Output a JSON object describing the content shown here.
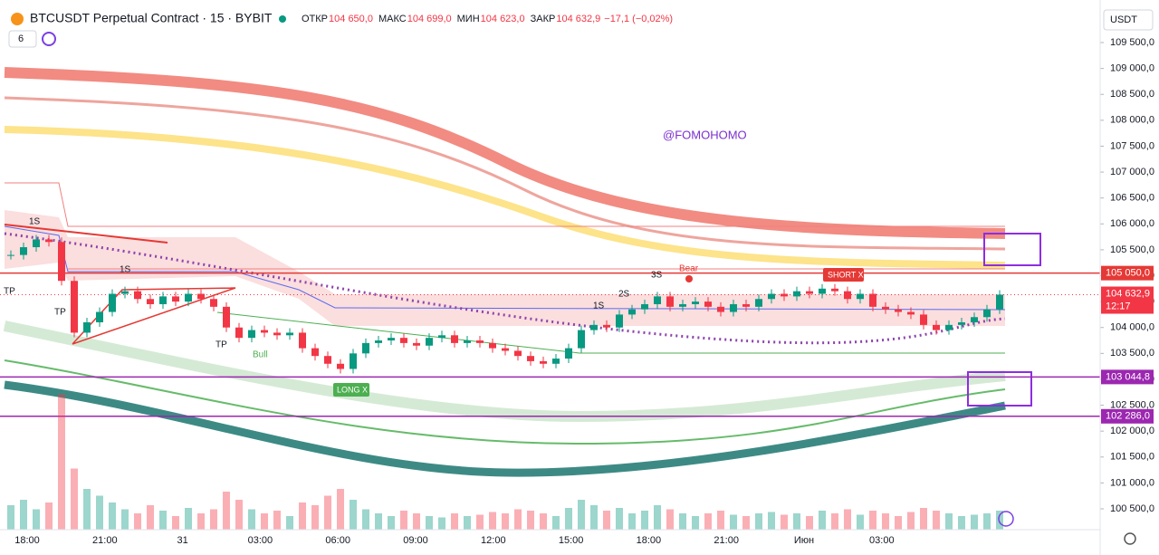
{
  "chart_data": {
    "type": "candlestick",
    "title": "BTCUSDT Perpetual Contract · 15 · BYBIT",
    "ohlc_header": [
      {
        "label": "ОТКР",
        "value": "104 650,0"
      },
      {
        "label": "МАКС",
        "value": "104 699,0"
      },
      {
        "label": "МИН",
        "value": "104 623,0"
      },
      {
        "label": "ЗАКР",
        "value": "104 632,9"
      }
    ],
    "change": "−17,1 (−0,02%)",
    "indicator_count": "6",
    "currency": "USDT",
    "watermark": "@FOMOHOMO",
    "time_labels": [
      "18:00",
      "21:00",
      "31",
      "03:00",
      "06:00",
      "09:00",
      "12:00",
      "15:00",
      "18:00",
      "21:00",
      "Июн",
      "03:00"
    ],
    "ylim": [
      100500,
      109500
    ],
    "yticks": [
      {
        "value": 109500,
        "label": "109 500,0"
      },
      {
        "value": 109000,
        "label": "109 000,0"
      },
      {
        "value": 108500,
        "label": "108 500,0"
      },
      {
        "value": 108000,
        "label": "108 000,0"
      },
      {
        "value": 107500,
        "label": "107 500,0"
      },
      {
        "value": 107000,
        "label": "107 000,0"
      },
      {
        "value": 106500,
        "label": "106 500,0"
      },
      {
        "value": 106000,
        "label": "106 000,0"
      },
      {
        "value": 105500,
        "label": "105 500,0"
      },
      {
        "value": 105000,
        "label": "105 000,0"
      },
      {
        "value": 104500,
        "label": "104 500,0"
      },
      {
        "value": 104000,
        "label": "104 000,0"
      },
      {
        "value": 103500,
        "label": "103 500,0"
      },
      {
        "value": 103000,
        "label": "103 000,0"
      },
      {
        "value": 102500,
        "label": "102 500,0"
      },
      {
        "value": 102000,
        "label": "102 000,0"
      },
      {
        "value": 101500,
        "label": "101 500,0"
      },
      {
        "value": 101000,
        "label": "101 000,0"
      },
      {
        "value": 100500,
        "label": "100 500,0"
      }
    ],
    "price_lines": [
      {
        "value": 105050,
        "label": "105 050,0",
        "color": "#e53935"
      },
      {
        "value": 103044.8,
        "label": "103 044,8",
        "color": "#9c27b0"
      },
      {
        "value": 102286,
        "label": "102 286,0",
        "color": "#9c27b0"
      }
    ],
    "last_price": {
      "value": 104632.9,
      "label": "104 632,9",
      "countdown": "12:17",
      "color": "#f23645"
    },
    "up_color": "#089981",
    "down_color": "#f23645",
    "closes": [
      105400,
      105550,
      105700,
      105650,
      104900,
      103900,
      104100,
      104300,
      104650,
      104700,
      104550,
      104450,
      104600,
      104500,
      104650,
      104550,
      104400,
      104000,
      103800,
      103950,
      103900,
      103850,
      103900,
      103600,
      103450,
      103300,
      103200,
      103500,
      103700,
      103750,
      103800,
      103700,
      103650,
      103800,
      103850,
      103700,
      103750,
      103700,
      103600,
      103550,
      103450,
      103350,
      103300,
      103400,
      103600,
      103950,
      104050,
      104000,
      104250,
      104350,
      104450,
      104600,
      104400,
      104450,
      104500,
      104400,
      104300,
      104450,
      104400,
      104550,
      104650,
      104600,
      104700,
      104650,
      104750,
      104700,
      104550,
      104650,
      104400,
      104350,
      104300,
      104250,
      104050,
      103950,
      104050,
      104100,
      104200,
      104350,
      104632.9
    ],
    "volumes": [
      18,
      22,
      15,
      20,
      100,
      45,
      30,
      25,
      20,
      15,
      12,
      18,
      14,
      10,
      16,
      12,
      15,
      28,
      22,
      15,
      12,
      14,
      10,
      20,
      18,
      25,
      30,
      22,
      15,
      12,
      10,
      14,
      12,
      10,
      9,
      12,
      10,
      11,
      13,
      12,
      15,
      14,
      12,
      10,
      16,
      22,
      18,
      14,
      16,
      12,
      14,
      18,
      15,
      12,
      10,
      12,
      14,
      11,
      10,
      12,
      13,
      11,
      12,
      10,
      14,
      12,
      15,
      11,
      14,
      12,
      10,
      13,
      16,
      14,
      12,
      10,
      11,
      12,
      14
    ],
    "annotations": [
      "1S",
      "TP",
      "TP",
      "1S",
      "TP",
      "Bull",
      "LONG X",
      "1S",
      "2S",
      "3S",
      "Bear",
      "SHORT X"
    ]
  }
}
